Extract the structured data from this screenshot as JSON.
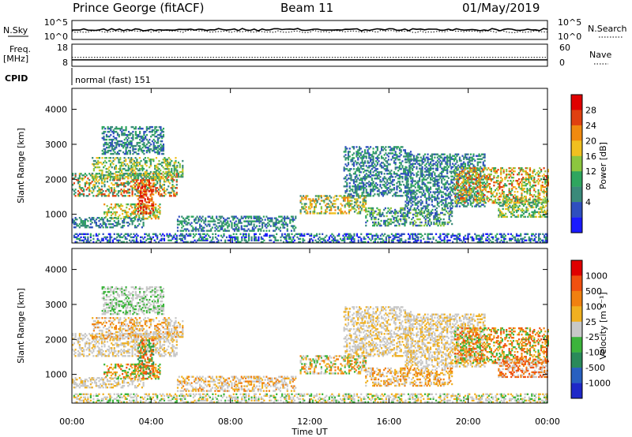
{
  "header": {
    "station": "Prince George (fitACF)",
    "beam": "Beam 11",
    "date": "01/May/2019"
  },
  "side_labels": {
    "nsky": "N.Sky",
    "nsearch": "N.Search",
    "freq_top": "Freq.",
    "freq_unit": "[MHz]",
    "nave": "Nave",
    "cpid": "CPID"
  },
  "cpid_text": "normal (fast) 151",
  "colors": {
    "power": [
      "#1a1aff",
      "#2f4fbf",
      "#3a8a7a",
      "#2fa65f",
      "#8cc63f",
      "#f0c020",
      "#f08a10",
      "#e04010",
      "#e00000"
    ],
    "velocity": [
      "#1e28c8",
      "#2860c0",
      "#2a8a5a",
      "#3cb43c",
      "#c8c8c8",
      "#f0b020",
      "#f08010",
      "#f05010",
      "#e00000"
    ]
  },
  "chart_data": [
    {
      "type": "line",
      "name": "noise-panel",
      "ylabel_left": "N.Sky",
      "ylabel_right": "N.Search",
      "left_ticks": [
        "10^5",
        "10^0"
      ],
      "right_ticks": [
        "10^5",
        "10^0"
      ],
      "series": [
        {
          "name": "N.Sky",
          "style": "solid",
          "level": 0.35
        },
        {
          "name": "N.Search",
          "style": "dotted",
          "level": 0.3
        }
      ]
    },
    {
      "type": "line",
      "name": "freq-panel",
      "ylabel_left": "Freq. [MHz]",
      "ylabel_right": "Nave",
      "left_ticks": [
        18,
        8
      ],
      "right_ticks": [
        60,
        0
      ],
      "series": [
        {
          "name": "Freq.",
          "style": "solid",
          "value_mhz": 10.9
        },
        {
          "name": "Nave",
          "style": "dotted",
          "value": 24
        }
      ]
    },
    {
      "type": "heatmap",
      "name": "power-panel",
      "ylabel": "Slant Range [km]",
      "ylim": [
        180,
        4600
      ],
      "xlim_hours": [
        0,
        24
      ],
      "yticks": [
        1000,
        2000,
        3000,
        4000
      ],
      "colorbar_label": "Power [dB]",
      "colorbar_ticks": [
        "28",
        "24",
        "20",
        "16",
        "12",
        "8",
        "4"
      ]
    },
    {
      "type": "heatmap",
      "name": "velocity-panel",
      "xlabel": "Time UT",
      "ylabel": "Slant Range [km]",
      "ylim": [
        180,
        4600
      ],
      "xlim_hours": [
        0,
        24
      ],
      "yticks": [
        1000,
        2000,
        3000,
        4000
      ],
      "xticks": [
        "00:00",
        "04:00",
        "08:00",
        "12:00",
        "16:00",
        "20:00",
        "00:00"
      ],
      "colorbar_label": "Velocity [m s⁻¹]",
      "colorbar_ticks": [
        "1000",
        "500",
        "100",
        "25",
        "-25",
        "-100",
        "-500",
        "-1000"
      ]
    }
  ],
  "echo_regions": [
    {
      "t0": 0.0,
      "t1": 5.3,
      "r0": 1500,
      "r1": 2150,
      "ps": [
        2,
        3,
        5,
        7
      ],
      "vs": [
        4,
        4,
        4,
        5
      ]
    },
    {
      "t0": 1.0,
      "t1": 5.6,
      "r0": 2000,
      "r1": 2600,
      "ps": [
        2,
        3,
        4,
        5
      ],
      "vs": [
        4,
        4,
        5,
        6
      ]
    },
    {
      "t0": 1.5,
      "t1": 4.6,
      "r0": 2700,
      "r1": 3500,
      "ps": [
        1,
        2,
        3
      ],
      "vs": [
        4,
        4,
        3
      ]
    },
    {
      "t0": 1.6,
      "t1": 4.4,
      "r0": 850,
      "r1": 1300,
      "ps": [
        3,
        4,
        5,
        6
      ],
      "vs": [
        5,
        6,
        7,
        3
      ]
    },
    {
      "t0": 3.3,
      "t1": 4.1,
      "r0": 1000,
      "r1": 1950,
      "ps": [
        6,
        7,
        8
      ],
      "vs": [
        6,
        7,
        3,
        2
      ]
    },
    {
      "t0": 0.0,
      "t1": 3.6,
      "r0": 600,
      "r1": 900,
      "ps": [
        1,
        2,
        3
      ],
      "vs": [
        4,
        4,
        5
      ]
    },
    {
      "t0": 5.3,
      "t1": 11.3,
      "r0": 500,
      "r1": 950,
      "ps": [
        1,
        2,
        3
      ],
      "vs": [
        6,
        5,
        4,
        4
      ]
    },
    {
      "t0": 11.5,
      "t1": 14.8,
      "r0": 1000,
      "r1": 1500,
      "ps": [
        2,
        4,
        5,
        6
      ],
      "vs": [
        6,
        3,
        5,
        4
      ]
    },
    {
      "t0": 13.7,
      "t1": 17.2,
      "r0": 1500,
      "r1": 2900,
      "ps": [
        1,
        2,
        3
      ],
      "vs": [
        4,
        4,
        5
      ]
    },
    {
      "t0": 14.8,
      "t1": 19.2,
      "r0": 650,
      "r1": 1150,
      "ps": [
        1,
        2,
        3,
        4
      ],
      "vs": [
        4,
        5,
        6
      ]
    },
    {
      "t0": 16.8,
      "t1": 20.8,
      "r0": 1200,
      "r1": 2700,
      "ps": [
        1,
        2,
        3
      ],
      "vs": [
        4,
        4,
        5
      ]
    },
    {
      "t0": 19.3,
      "t1": 24.0,
      "r0": 1300,
      "r1": 2300,
      "ps": [
        3,
        4,
        5,
        6,
        7
      ],
      "vs": [
        6,
        7,
        5,
        3
      ]
    },
    {
      "t0": 21.5,
      "t1": 24.0,
      "r0": 900,
      "r1": 1400,
      "ps": [
        2,
        3,
        4,
        5
      ],
      "vs": [
        6,
        7,
        4
      ]
    },
    {
      "t0": 0.0,
      "t1": 24.0,
      "r0": 180,
      "r1": 450,
      "ps": [
        0,
        1,
        2,
        3
      ],
      "vs": [
        4,
        3,
        4,
        5
      ]
    }
  ]
}
